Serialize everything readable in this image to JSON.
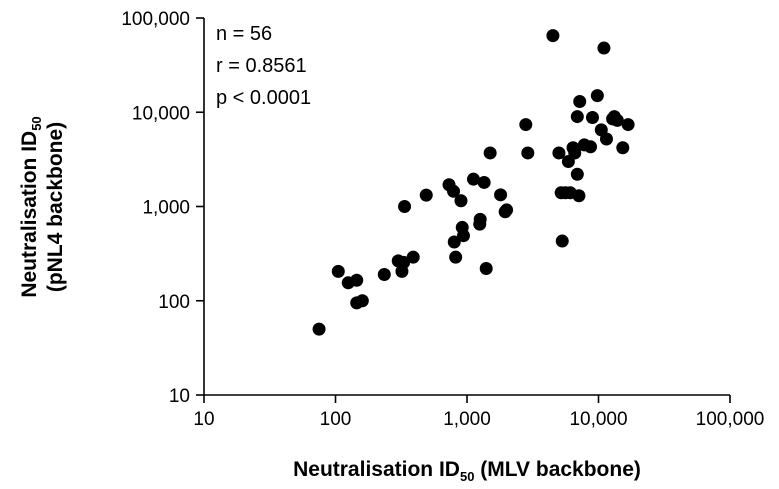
{
  "chart_data": {
    "type": "scatter",
    "x_scale": "log",
    "y_scale": "log",
    "xlim": [
      10,
      100000
    ],
    "ylim": [
      10,
      100000
    ],
    "grid": false,
    "xlabel": {
      "main": "Neutralisation ID",
      "sub": "50",
      "tail": " (MLV backbone)"
    },
    "ylabel": {
      "main": "Neutralisation ID",
      "sub": "50",
      "line2": "(pNL4 backbone)"
    },
    "x_ticks": [
      10,
      100,
      1000,
      10000,
      100000
    ],
    "x_tick_labels": [
      "10",
      "100",
      "1,000",
      "10,000",
      "100,000"
    ],
    "y_ticks": [
      10,
      100,
      1000,
      10000,
      100000
    ],
    "y_tick_labels": [
      "10",
      "100",
      "1,000",
      "10,000",
      "100,000"
    ],
    "annotations": [
      "n = 56",
      "r = 0.8561",
      "p < 0.0001"
    ],
    "points": [
      [
        75,
        50
      ],
      [
        105,
        205
      ],
      [
        125,
        155
      ],
      [
        145,
        165
      ],
      [
        145,
        95
      ],
      [
        160,
        100
      ],
      [
        235,
        190
      ],
      [
        300,
        265
      ],
      [
        320,
        205
      ],
      [
        330,
        255
      ],
      [
        335,
        1000
      ],
      [
        390,
        290
      ],
      [
        490,
        1320
      ],
      [
        730,
        1700
      ],
      [
        790,
        1450
      ],
      [
        800,
        420
      ],
      [
        820,
        290
      ],
      [
        900,
        1150
      ],
      [
        920,
        600
      ],
      [
        940,
        490
      ],
      [
        1120,
        1950
      ],
      [
        1250,
        650
      ],
      [
        1260,
        730
      ],
      [
        1350,
        1800
      ],
      [
        1400,
        220
      ],
      [
        1500,
        3700
      ],
      [
        1800,
        1330
      ],
      [
        1950,
        880
      ],
      [
        2000,
        920
      ],
      [
        2800,
        7400
      ],
      [
        2900,
        3700
      ],
      [
        4500,
        65000
      ],
      [
        5000,
        3700
      ],
      [
        5200,
        1400
      ],
      [
        5300,
        430
      ],
      [
        5600,
        1400
      ],
      [
        5900,
        3000
      ],
      [
        6100,
        1400
      ],
      [
        6400,
        4200
      ],
      [
        6600,
        3700
      ],
      [
        6900,
        9000
      ],
      [
        6900,
        2200
      ],
      [
        7100,
        1300
      ],
      [
        7200,
        13000
      ],
      [
        7800,
        4500
      ],
      [
        8700,
        4300
      ],
      [
        9000,
        8800
      ],
      [
        9800,
        15000
      ],
      [
        11000,
        48000
      ],
      [
        11500,
        5200
      ],
      [
        12800,
        8500
      ],
      [
        13200,
        9000
      ],
      [
        13900,
        8200
      ],
      [
        15300,
        4200
      ],
      [
        16800,
        7400
      ],
      [
        10500,
        6500
      ]
    ]
  }
}
